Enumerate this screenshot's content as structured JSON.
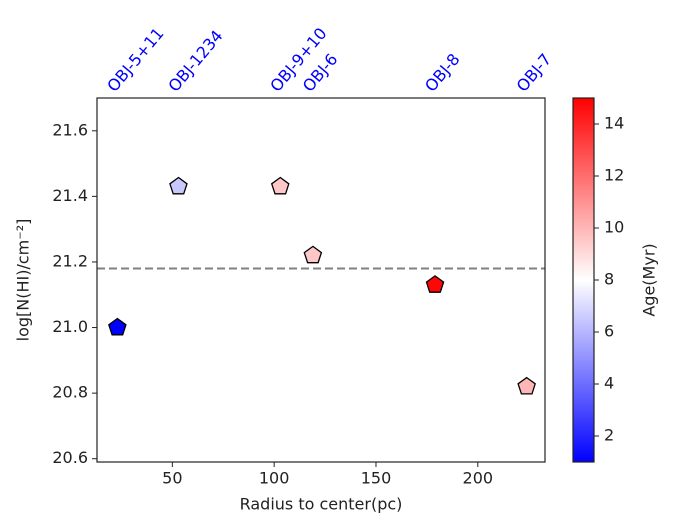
{
  "chart_data": {
    "type": "scatter",
    "x": [
      23,
      53,
      103,
      119,
      179,
      224
    ],
    "values": [
      21.0,
      21.43,
      21.43,
      21.22,
      21.13,
      20.82
    ],
    "color_values": [
      1,
      6.5,
      9.5,
      9.5,
      14.8,
      10
    ],
    "point_labels": [
      "OBJ-5+11",
      "OBJ-1234",
      "OBJ-9+10",
      "OBJ-6",
      "OBJ-8",
      "OBJ-7"
    ],
    "label_color": "#0000ff",
    "colormap": "bwr",
    "clim": [
      1,
      15
    ],
    "cticks": [
      2,
      4,
      6,
      8,
      10,
      12,
      14
    ],
    "colorbar_label": "Age(Myr)",
    "hline": 21.18,
    "hline_color": "#808080",
    "xlabel": "Radius to center(pc)",
    "ylabel": "log[N(HI)/cm⁻²]",
    "xlim": [
      13,
      233
    ],
    "ylim": [
      20.59,
      21.7
    ],
    "xticks": [
      50,
      100,
      150,
      200
    ],
    "yticks": [
      20.6,
      20.8,
      {
        "value": 21,
        "label": "21.0"
      },
      21.2,
      21.4,
      21.6
    ]
  }
}
